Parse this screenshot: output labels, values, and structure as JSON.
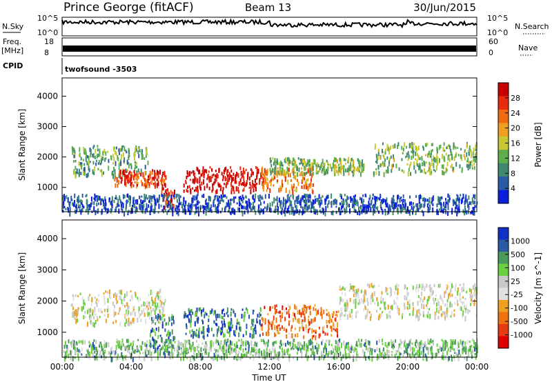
{
  "header": {
    "station": "Prince George (fitACF)",
    "beam": "Beam 13",
    "date": "30/Jun/2015"
  },
  "strips": {
    "nsky_label": "N.Sky",
    "nsky_ticks": [
      "10^5",
      "10^0"
    ],
    "nsearch_label": "N.Search",
    "freq_label_1": "Freq.",
    "freq_label_2": "[MHz]",
    "freq_ticks": [
      "18",
      "8"
    ],
    "nave_ticks": [
      "60",
      "0"
    ],
    "nave_label": "Nave",
    "cpid_label": "CPID",
    "cpid_value": "twofsound -3503"
  },
  "colors": {
    "power_scale": [
      "#0a1edc",
      "#2a5aa6",
      "#3f8a6e",
      "#5fae4c",
      "#c8c832",
      "#f0a020",
      "#f06a10",
      "#e82a10",
      "#c80000"
    ],
    "velocity_scale": [
      "#1030c8",
      "#2a5aa6",
      "#4a9a5a",
      "#6ad040",
      "#c8c8c8",
      "#e0e0e0",
      "#f0a020",
      "#f07010",
      "#e83a10",
      "#e00000"
    ]
  },
  "chart_data": [
    {
      "type": "heatmap",
      "name": "power",
      "ylabel": "Slant Range [km]",
      "xlabel": "Time UT",
      "x_ticks": [
        "00:00",
        "04:00",
        "08:00",
        "12:00",
        "16:00",
        "20:00",
        "00:00"
      ],
      "y_ticks": [
        1000,
        2000,
        3000,
        4000
      ],
      "ylim": [
        200,
        4600
      ],
      "xlim_hours": [
        0,
        24
      ],
      "colorbar": {
        "label": "Power [dB]",
        "ticks": [
          4,
          8,
          12,
          16,
          20,
          24,
          28
        ],
        "range": [
          0,
          32
        ]
      },
      "features": [
        {
          "t0": 0.5,
          "t1": 5.0,
          "r0": 1450,
          "r1": 2400,
          "level": 0.35
        },
        {
          "t0": 3.0,
          "t1": 6.0,
          "r0": 1100,
          "r1": 1600,
          "level": 0.8
        },
        {
          "t0": 5.7,
          "t1": 6.5,
          "r0": 400,
          "r1": 1000,
          "level": 0.9
        },
        {
          "t0": 7.0,
          "t1": 11.5,
          "r0": 900,
          "r1": 1700,
          "level": 0.95
        },
        {
          "t0": 11.5,
          "t1": 14.5,
          "r0": 900,
          "r1": 1700,
          "level": 0.7
        },
        {
          "t0": 12.0,
          "t1": 17.5,
          "r0": 1500,
          "r1": 2000,
          "level": 0.4
        },
        {
          "t0": 18.0,
          "t1": 24.0,
          "r0": 1500,
          "r1": 2500,
          "level": 0.4
        },
        {
          "t0": 0.0,
          "t1": 24.0,
          "r0": 200,
          "r1": 800,
          "level": 0.15
        }
      ]
    },
    {
      "type": "heatmap",
      "name": "velocity",
      "ylabel": "Slant Range [km]",
      "xlabel": "Time UT",
      "x_ticks": [
        "00:00",
        "04:00",
        "08:00",
        "12:00",
        "16:00",
        "20:00",
        "00:00"
      ],
      "y_ticks": [
        1000,
        2000,
        3000,
        4000
      ],
      "ylim": [
        200,
        4600
      ],
      "xlim_hours": [
        0,
        24
      ],
      "colorbar": {
        "label": "Velocity [m s^-1]",
        "ticks": [
          1000,
          500,
          100,
          25,
          -25,
          -100,
          -500,
          -1000
        ]
      },
      "features": [
        {
          "t0": 0.5,
          "t1": 6.0,
          "r0": 1300,
          "r1": 2400,
          "level": 0.5
        },
        {
          "t0": 5.0,
          "t1": 6.5,
          "r0": 500,
          "r1": 1600,
          "level": 0.2
        },
        {
          "t0": 7.0,
          "t1": 11.5,
          "r0": 900,
          "r1": 1800,
          "level": 0.2
        },
        {
          "t0": 11.5,
          "t1": 16.0,
          "r0": 900,
          "r1": 1900,
          "level": 0.75
        },
        {
          "t0": 16.0,
          "t1": 24.0,
          "r0": 1500,
          "r1": 2600,
          "level": 0.5
        },
        {
          "t0": 0.0,
          "t1": 24.0,
          "r0": 200,
          "r1": 800,
          "level": 0.35
        }
      ]
    }
  ]
}
